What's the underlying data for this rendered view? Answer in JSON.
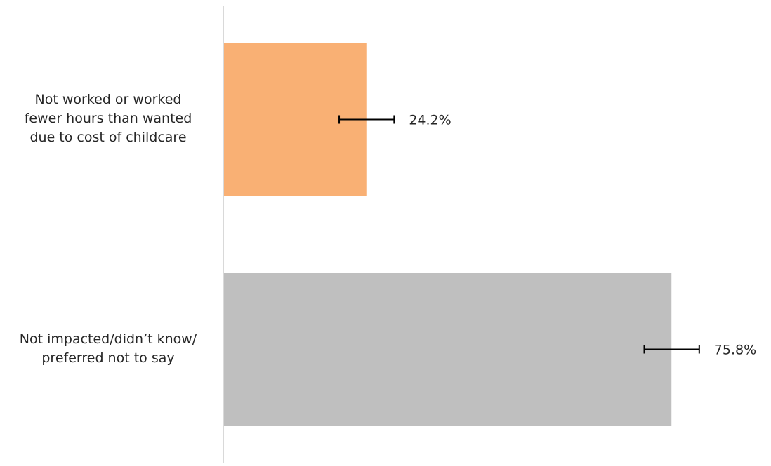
{
  "chart_data": {
    "type": "bar",
    "orientation": "horizontal",
    "title": "",
    "xlabel": "",
    "ylabel": "",
    "categories": [
      [
        "Not worked or worked",
        "fewer hours than wanted",
        "due to cost of childcare"
      ],
      [
        "Not impacted/didn’t know/",
        "preferred not to say"
      ]
    ],
    "values": [
      24.2,
      75.8
    ],
    "value_labels": [
      "24.2%",
      "75.8%"
    ],
    "error_bars": [
      [
        19.6,
        28.9
      ],
      [
        71.2,
        80.5
      ]
    ],
    "colors": [
      "#f9b074",
      "#bfbfbf"
    ],
    "xlim": [
      0,
      100
    ],
    "grid": false,
    "legend": "none"
  }
}
